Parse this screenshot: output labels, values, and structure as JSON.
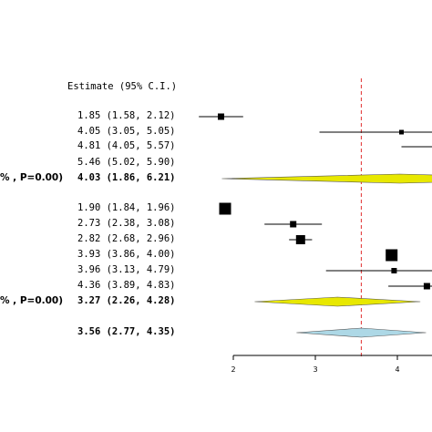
{
  "chart_data": {
    "type": "forest",
    "header": "Estimate (95% C.I.)",
    "reference_line": 3.56,
    "x_ticks": [
      "2",
      "3",
      "4"
    ],
    "xlim": [
      2,
      4.4
    ],
    "rows": [
      {
        "kind": "study",
        "label": "1.85 (1.58, 2.12)",
        "est": 1.85,
        "lo": 1.58,
        "hi": 2.12,
        "weight": 0.4
      },
      {
        "kind": "study",
        "label": "4.05 (3.05, 5.05)",
        "est": 4.05,
        "lo": 3.05,
        "hi": 5.05,
        "weight": 0.2
      },
      {
        "kind": "study",
        "label": "4.81 (4.05, 5.57)",
        "est": 4.81,
        "lo": 4.05,
        "hi": 5.57,
        "weight": 0.2
      },
      {
        "kind": "study",
        "label": "5.46 (5.02, 5.90)",
        "est": 5.46,
        "lo": 5.02,
        "hi": 5.9,
        "weight": 0.3
      },
      {
        "kind": "summary",
        "label": "4.03 (1.86, 6.21)",
        "het": "% , P=0.00)",
        "est": 4.03,
        "lo": 1.86,
        "hi": 6.21,
        "color": "#e8e800"
      },
      {
        "kind": "study",
        "label": "1.90 (1.84, 1.96)",
        "est": 1.9,
        "lo": 1.84,
        "hi": 1.96,
        "weight": 1.0
      },
      {
        "kind": "study",
        "label": "2.73 (2.38, 3.08)",
        "est": 2.73,
        "lo": 2.38,
        "hi": 3.08,
        "weight": 0.4
      },
      {
        "kind": "study",
        "label": "2.82 (2.68, 2.96)",
        "est": 2.82,
        "lo": 2.68,
        "hi": 2.96,
        "weight": 0.7
      },
      {
        "kind": "study",
        "label": "3.93 (3.86, 4.00)",
        "est": 3.93,
        "lo": 3.86,
        "hi": 4.0,
        "weight": 1.0
      },
      {
        "kind": "study",
        "label": "3.96 (3.13, 4.79)",
        "est": 3.96,
        "lo": 3.13,
        "hi": 4.79,
        "weight": 0.3
      },
      {
        "kind": "study",
        "label": "4.36 (3.89, 4.83)",
        "est": 4.36,
        "lo": 3.89,
        "hi": 4.83,
        "weight": 0.4
      },
      {
        "kind": "summary",
        "label": "3.27 (2.26, 4.28)",
        "het": "% , P=0.00)",
        "est": 3.27,
        "lo": 2.26,
        "hi": 4.28,
        "color": "#e8e800"
      },
      {
        "kind": "overall",
        "label": "3.56 (2.77, 4.35)",
        "est": 3.56,
        "lo": 2.77,
        "hi": 4.35,
        "color": "#add8e6"
      }
    ]
  }
}
